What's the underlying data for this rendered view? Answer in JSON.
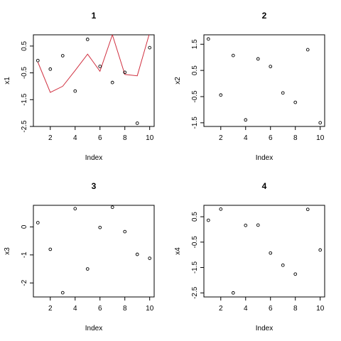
{
  "chart_data": [
    {
      "type": "scatter",
      "title": "1",
      "xlabel": "Index",
      "ylabel": "x1",
      "xticks": [
        2,
        4,
        6,
        8,
        10
      ],
      "yticks": [
        0.5,
        -0.5,
        -1.5,
        -2.5
      ],
      "xlim": [
        0.64,
        10.36
      ],
      "ylim": [
        -2.5,
        0.92
      ],
      "x": [
        1,
        2,
        3,
        4,
        5,
        6,
        7,
        8,
        9,
        10
      ],
      "y": [
        -0.04,
        -0.36,
        0.14,
        -1.18,
        0.75,
        -0.26,
        -0.86,
        -0.48,
        -2.38,
        0.44
      ],
      "line": {
        "color": "#d03040",
        "x": [
          1,
          2,
          3,
          4,
          5,
          6,
          7,
          8,
          9,
          10
        ],
        "y": [
          -0.1,
          -1.23,
          -1.0,
          -0.41,
          0.2,
          -0.44,
          0.92,
          -0.56,
          -0.61,
          1.0
        ]
      }
    },
    {
      "type": "scatter",
      "title": "2",
      "xlabel": "Index",
      "ylabel": "x2",
      "xticks": [
        2,
        4,
        6,
        8,
        10
      ],
      "yticks": [
        1.5,
        0.5,
        -0.5,
        -1.5
      ],
      "xlim": [
        0.64,
        10.36
      ],
      "ylim": [
        -1.64,
        1.86
      ],
      "x": [
        1,
        2,
        3,
        4,
        5,
        6,
        7,
        8,
        9,
        10
      ],
      "y": [
        1.7,
        -0.44,
        1.07,
        -1.39,
        0.94,
        0.65,
        -0.36,
        -0.72,
        1.29,
        -1.5
      ]
    },
    {
      "type": "scatter",
      "title": "3",
      "xlabel": "Index",
      "ylabel": "x3",
      "xticks": [
        2,
        4,
        6,
        8,
        10
      ],
      "yticks": [
        0.0,
        -1.0,
        -2.0
      ],
      "xlim": [
        0.64,
        10.36
      ],
      "ylim": [
        -2.5,
        0.77
      ],
      "x": [
        1,
        2,
        3,
        4,
        5,
        6,
        7,
        8,
        9,
        10
      ],
      "y": [
        0.15,
        -0.8,
        -2.35,
        0.65,
        -1.5,
        -0.02,
        0.7,
        -0.17,
        -0.98,
        -1.12
      ]
    },
    {
      "type": "scatter",
      "title": "4",
      "xlabel": "Index",
      "ylabel": "x4",
      "xticks": [
        2,
        4,
        6,
        8,
        10
      ],
      "yticks": [
        0.5,
        -0.5,
        -1.5,
        -2.5
      ],
      "xlim": [
        0.64,
        10.36
      ],
      "ylim": [
        -2.66,
        0.95
      ],
      "x": [
        1,
        2,
        3,
        4,
        5,
        6,
        7,
        8,
        9,
        10
      ],
      "y": [
        0.36,
        0.8,
        -2.5,
        0.16,
        0.17,
        -0.93,
        -1.41,
        -1.76,
        0.79,
        -0.81
      ]
    }
  ]
}
